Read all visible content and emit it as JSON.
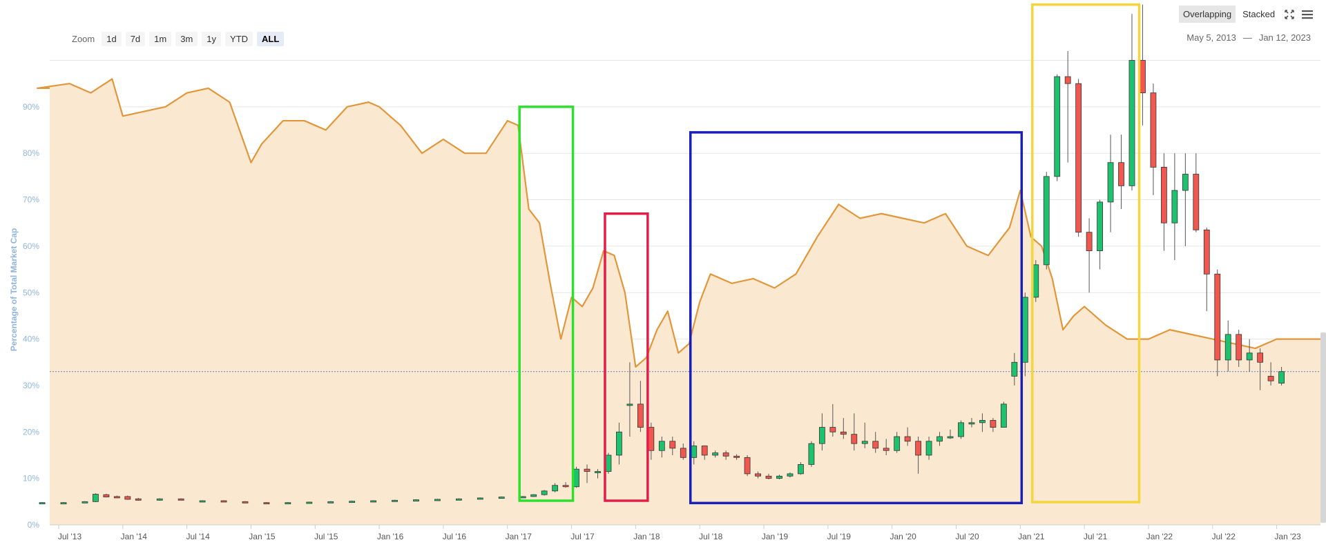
{
  "zoom": {
    "label": "Zoom",
    "buttons": [
      "1d",
      "7d",
      "1m",
      "3m",
      "1y",
      "YTD",
      "ALL"
    ],
    "active": "ALL"
  },
  "view_toggle": {
    "overlapping": "Overlapping",
    "stacked": "Stacked",
    "active": "Overlapping"
  },
  "date_range": {
    "from": "May 5, 2013",
    "separator": "—",
    "to": "Jan 12, 2023"
  },
  "chart_data": {
    "type": "area",
    "ylabel": "Percentage of Total Market Cap",
    "ylim": [
      0,
      100
    ],
    "yticks": [
      "0%",
      "10%",
      "20%",
      "30%",
      "40%",
      "50%",
      "60%",
      "70%",
      "80%",
      "90%"
    ],
    "x_ticks": [
      "Jul '13",
      "Jan '14",
      "Jul '14",
      "Jan '15",
      "Jul '15",
      "Jan '16",
      "Jul '16",
      "Jan '17",
      "Jul '17",
      "Jan '18",
      "Jul '18",
      "Jan '19",
      "Jul '19",
      "Jan '20",
      "Jul '20",
      "Jan '21",
      "Jul '21",
      "Jan '22",
      "Jul '22",
      "Jan '23"
    ],
    "xlim": [
      "2013-05",
      "2023-01"
    ],
    "grid": true,
    "area_color": "#fbe8d0",
    "line_color": "#e2963a",
    "current_value_line": 33,
    "dominance_series": {
      "x": [
        "2013-05",
        "2013-08",
        "2013-10",
        "2013-12",
        "2014-01",
        "2014-03",
        "2014-05",
        "2014-07",
        "2014-09",
        "2014-11",
        "2015-01",
        "2015-02",
        "2015-04",
        "2015-06",
        "2015-08",
        "2015-10",
        "2015-12",
        "2016-01",
        "2016-03",
        "2016-05",
        "2016-07",
        "2016-09",
        "2016-11",
        "2017-01",
        "2017-02",
        "2017-03",
        "2017-04",
        "2017-05",
        "2017-06",
        "2017-07",
        "2017-08",
        "2017-09",
        "2017-10",
        "2017-11",
        "2017-12",
        "2018-01",
        "2018-02",
        "2018-03",
        "2018-04",
        "2018-05",
        "2018-06",
        "2018-07",
        "2018-08",
        "2018-10",
        "2018-12",
        "2019-02",
        "2019-04",
        "2019-06",
        "2019-08",
        "2019-10",
        "2019-12",
        "2020-02",
        "2020-04",
        "2020-06",
        "2020-08",
        "2020-10",
        "2020-12",
        "2021-01",
        "2021-02",
        "2021-03",
        "2021-04",
        "2021-05",
        "2021-06",
        "2021-07",
        "2021-09",
        "2021-11",
        "2022-01",
        "2022-03",
        "2022-05",
        "2022-07",
        "2022-09",
        "2022-11",
        "2023-01"
      ],
      "values": [
        94,
        95,
        93,
        96,
        88,
        89,
        90,
        93,
        94,
        91,
        78,
        82,
        87,
        87,
        85,
        90,
        91,
        90,
        86,
        80,
        83,
        80,
        80,
        87,
        86,
        68,
        65,
        52,
        40,
        49,
        47,
        51,
        59,
        58,
        50,
        34,
        36,
        42,
        46,
        37,
        39,
        48,
        54,
        52,
        53,
        51,
        54,
        62,
        69,
        66,
        67,
        66,
        65,
        67,
        60,
        58,
        64,
        72,
        62,
        60,
        53,
        42,
        45,
        47,
        43,
        40,
        40,
        42,
        41,
        40,
        39,
        38,
        40
      ]
    },
    "candles": {
      "x": [
        "2013-05",
        "2013-07",
        "2013-09",
        "2013-10",
        "2013-11",
        "2013-12",
        "2014-01",
        "2014-02",
        "2014-04",
        "2014-06",
        "2014-08",
        "2014-10",
        "2014-12",
        "2015-02",
        "2015-04",
        "2015-06",
        "2015-08",
        "2015-10",
        "2015-12",
        "2016-02",
        "2016-04",
        "2016-06",
        "2016-08",
        "2016-10",
        "2016-12",
        "2017-02",
        "2017-03",
        "2017-04",
        "2017-05",
        "2017-06",
        "2017-07",
        "2017-08",
        "2017-09",
        "2017-10",
        "2017-11",
        "2017-12",
        "2018-01",
        "2018-02",
        "2018-03",
        "2018-04",
        "2018-05",
        "2018-06",
        "2018-07",
        "2018-08",
        "2018-09",
        "2018-10",
        "2018-11",
        "2018-12",
        "2019-01",
        "2019-02",
        "2019-03",
        "2019-04",
        "2019-05",
        "2019-06",
        "2019-07",
        "2019-08",
        "2019-09",
        "2019-10",
        "2019-11",
        "2019-12",
        "2020-01",
        "2020-02",
        "2020-03",
        "2020-04",
        "2020-05",
        "2020-06",
        "2020-07",
        "2020-08",
        "2020-09",
        "2020-10",
        "2020-11",
        "2020-12",
        "2021-01",
        "2021-02",
        "2021-03",
        "2021-04",
        "2021-05",
        "2021-06",
        "2021-07",
        "2021-08",
        "2021-09",
        "2021-10",
        "2021-11",
        "2021-12",
        "2022-01",
        "2022-02",
        "2022-03",
        "2022-04",
        "2022-05",
        "2022-06",
        "2022-07",
        "2022-08",
        "2022-09",
        "2022-10",
        "2022-11",
        "2022-12",
        "2023-01"
      ],
      "open": [
        4.7,
        4.7,
        4.8,
        5.0,
        6.5,
        6.1,
        6.1,
        5.6,
        5.3,
        5.6,
        5.2,
        5.2,
        5.0,
        4.8,
        4.7,
        4.8,
        4.9,
        5.0,
        5.1,
        5.2,
        5.3,
        5.4,
        5.5,
        5.6,
        5.8,
        6.0,
        6.1,
        6.5,
        7.3,
        8.5,
        8.2,
        12.0,
        11.5,
        11.5,
        15.0,
        26.0,
        26.0,
        21.0,
        16.0,
        18.0,
        16.5,
        14.5,
        17.0,
        15.0,
        15.5,
        14.8,
        14.5,
        11.0,
        10.5,
        10.0,
        10.5,
        11.0,
        13.0,
        17.5,
        21.0,
        20.0,
        19.5,
        17.5,
        18.0,
        16.5,
        16.0,
        19.0,
        18.0,
        15.0,
        18.0,
        19.0,
        19.0,
        22.0,
        22.0,
        22.5,
        21.0,
        32.0,
        35.0,
        49.0,
        56.0,
        75.0,
        96.5,
        95.0,
        63.0,
        59.0,
        69.5,
        78.0,
        73.0,
        100.0,
        93.0,
        77.0,
        65.0,
        72.0,
        75.5,
        63.5,
        54.0,
        35.5,
        41.0,
        35.5,
        37.0,
        32.0,
        30.5
      ],
      "close": [
        4.8,
        4.8,
        5.0,
        6.6,
        6.0,
        6.0,
        5.5,
        5.3,
        5.6,
        5.4,
        5.2,
        5.0,
        4.8,
        4.7,
        4.8,
        4.9,
        5.0,
        5.1,
        5.2,
        5.3,
        5.4,
        5.5,
        5.6,
        5.8,
        6.0,
        6.1,
        6.5,
        7.3,
        8.5,
        8.2,
        12.0,
        11.5,
        11.5,
        15.0,
        20.0,
        26.0,
        21.0,
        16.0,
        18.0,
        16.5,
        14.5,
        17.0,
        15.0,
        15.5,
        14.8,
        14.5,
        11.0,
        10.5,
        10.0,
        10.5,
        11.0,
        13.0,
        17.5,
        21.0,
        20.0,
        19.5,
        17.5,
        18.0,
        16.5,
        16.0,
        19.0,
        18.0,
        15.0,
        18.0,
        19.0,
        19.0,
        22.0,
        22.0,
        22.5,
        21.0,
        26.0,
        35.0,
        49.0,
        56.0,
        75.0,
        96.5,
        95.0,
        63.0,
        59.0,
        69.5,
        78.0,
        73.0,
        100.0,
        93.0,
        77.0,
        65.0,
        72.0,
        75.5,
        63.5,
        54.0,
        35.5,
        41.0,
        35.5,
        37.0,
        35.0,
        31.0,
        33.0
      ],
      "high": [
        4.9,
        4.9,
        5.1,
        6.8,
        6.7,
        6.3,
        6.3,
        5.8,
        5.7,
        5.7,
        5.3,
        5.3,
        5.1,
        4.9,
        4.9,
        5.0,
        5.1,
        5.2,
        5.3,
        5.4,
        5.5,
        5.6,
        5.7,
        5.9,
        6.1,
        6.2,
        6.6,
        7.5,
        9.0,
        9.2,
        12.5,
        13.0,
        12.0,
        15.5,
        22.0,
        35.0,
        31.0,
        22.0,
        19.0,
        19.0,
        17.5,
        18.0,
        17.0,
        16.0,
        16.0,
        15.2,
        15.0,
        11.5,
        11.0,
        10.8,
        11.3,
        13.5,
        18.0,
        24.0,
        26.0,
        23.0,
        24.0,
        22.0,
        20.0,
        18.5,
        20.0,
        21.0,
        19.0,
        19.0,
        20.0,
        20.5,
        22.5,
        23.0,
        24.0,
        23.0,
        26.5,
        37.0,
        50.0,
        57.0,
        76.0,
        97.0,
        102.0,
        96.0,
        66.0,
        70.0,
        84.0,
        84.0,
        110.0,
        112.0,
        95.0,
        80.0,
        80.0,
        80.0,
        80.0,
        64.0,
        55.0,
        44.0,
        42.0,
        40.0,
        38.0,
        35.0,
        34.0
      ],
      "low": [
        4.6,
        4.6,
        4.7,
        4.9,
        5.9,
        5.9,
        5.4,
        5.2,
        5.2,
        5.3,
        5.1,
        4.9,
        4.7,
        4.6,
        4.6,
        4.7,
        4.8,
        4.9,
        5.0,
        5.1,
        5.2,
        5.3,
        5.4,
        5.5,
        5.7,
        5.9,
        6.0,
        6.3,
        7.0,
        8.0,
        8.0,
        9.0,
        10.0,
        11.0,
        13.0,
        19.0,
        20.0,
        14.0,
        14.5,
        15.0,
        14.0,
        13.0,
        14.0,
        14.5,
        14.0,
        14.0,
        10.5,
        10.0,
        9.8,
        9.8,
        10.2,
        10.8,
        12.5,
        16.0,
        19.0,
        18.5,
        16.0,
        16.5,
        15.5,
        15.0,
        15.5,
        17.0,
        11.0,
        14.0,
        17.0,
        18.5,
        18.5,
        21.0,
        20.0,
        20.0,
        21.0,
        30.0,
        32.0,
        48.0,
        55.0,
        74.0,
        78.0,
        62.0,
        50.0,
        55.0,
        63.0,
        68.0,
        72.0,
        86.0,
        71.0,
        59.0,
        57.0,
        60.0,
        63.0,
        46.0,
        32.0,
        33.0,
        34.0,
        33.0,
        29.0,
        30.0,
        30.0
      ]
    },
    "highlight_boxes": [
      {
        "from": "2017-02",
        "to": "2017-07",
        "top": 90,
        "bottom": 5.2,
        "color": "#2ee02e"
      },
      {
        "from": "2017-10",
        "to": "2018-02",
        "top": 67,
        "bottom": 5.2,
        "color": "#e01e4a"
      },
      {
        "from": "2018-06",
        "to": "2021-01",
        "top": 84.5,
        "bottom": 4.7,
        "color": "#1a1fb8"
      },
      {
        "from": "2021-02",
        "to": "2021-12",
        "top": 112,
        "bottom": 4.9,
        "color": "#f5d53a"
      }
    ]
  }
}
